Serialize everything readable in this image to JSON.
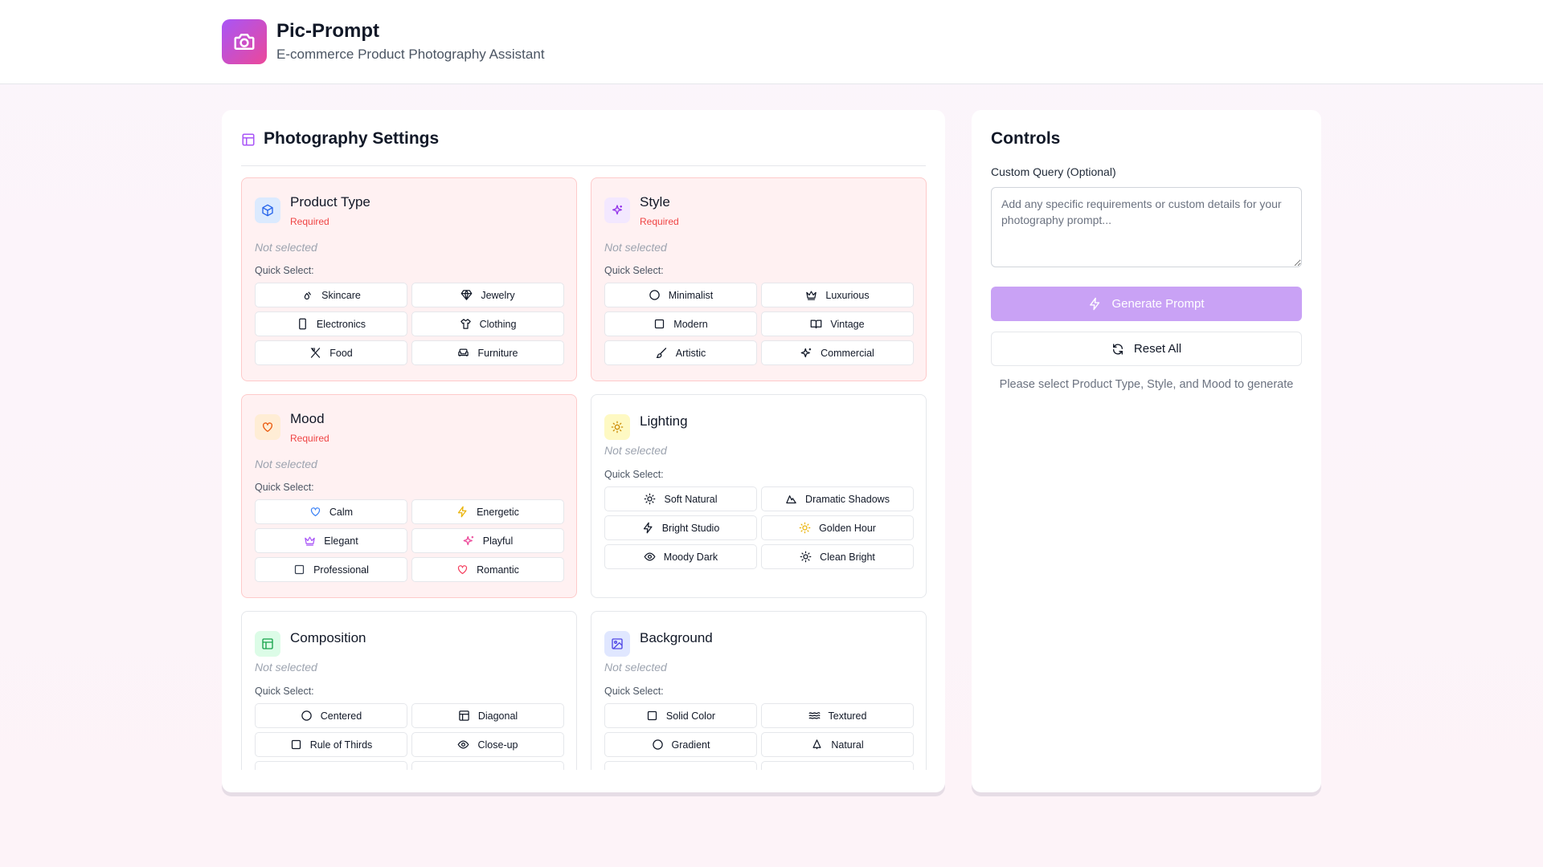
{
  "app": {
    "title": "Pic-Prompt",
    "subtitle": "E-commerce Product Photography Assistant",
    "logo_icon": "camera-icon",
    "brand_gradient": [
      "#a855f7",
      "#ec4899"
    ]
  },
  "settings": {
    "title": "Photography Settings",
    "icon": "layout-icon",
    "quick_select_label": "Quick Select:",
    "sections": [
      {
        "title": "Product Type",
        "required": "Required",
        "status": "Not selected",
        "icon": "box-icon",
        "options": [
          {
            "label": "Skincare",
            "icon": "droplets-icon"
          },
          {
            "label": "Jewelry",
            "icon": "gem-icon"
          },
          {
            "label": "Electronics",
            "icon": "smartphone-icon"
          },
          {
            "label": "Clothing",
            "icon": "shirt-icon"
          },
          {
            "label": "Food",
            "icon": "utensils-icon"
          },
          {
            "label": "Furniture",
            "icon": "sofa-icon"
          }
        ]
      },
      {
        "title": "Style",
        "required": "Required",
        "status": "Not selected",
        "icon": "sparkles-icon",
        "options": [
          {
            "label": "Minimalist",
            "icon": "circle-icon"
          },
          {
            "label": "Luxurious",
            "icon": "crown-icon"
          },
          {
            "label": "Modern",
            "icon": "square-icon"
          },
          {
            "label": "Vintage",
            "icon": "book-open-icon"
          },
          {
            "label": "Artistic",
            "icon": "brush-icon"
          },
          {
            "label": "Commercial",
            "icon": "sparkles-icon"
          }
        ]
      },
      {
        "title": "Mood",
        "required": "Required",
        "status": "Not selected",
        "icon": "heart-icon",
        "options": [
          {
            "label": "Calm",
            "icon": "heart-icon"
          },
          {
            "label": "Energetic",
            "icon": "zap-icon"
          },
          {
            "label": "Elegant",
            "icon": "crown-icon"
          },
          {
            "label": "Playful",
            "icon": "sparkles-icon"
          },
          {
            "label": "Professional",
            "icon": "square-icon"
          },
          {
            "label": "Romantic",
            "icon": "heart-icon"
          }
        ]
      },
      {
        "title": "Lighting",
        "status": "Not selected",
        "icon": "sun-icon",
        "options": [
          {
            "label": "Soft Natural",
            "icon": "sun-icon"
          },
          {
            "label": "Dramatic Shadows",
            "icon": "mountain-icon"
          },
          {
            "label": "Bright Studio",
            "icon": "zap-icon"
          },
          {
            "label": "Golden Hour",
            "icon": "sun-icon"
          },
          {
            "label": "Moody Dark",
            "icon": "eye-icon"
          },
          {
            "label": "Clean Bright",
            "icon": "sun-icon"
          }
        ]
      },
      {
        "title": "Composition",
        "status": "Not selected",
        "icon": "layout-icon",
        "options": [
          {
            "label": "Centered",
            "icon": "circle-icon"
          },
          {
            "label": "Diagonal",
            "icon": "layout-icon"
          },
          {
            "label": "Rule of Thirds",
            "icon": "square-icon"
          },
          {
            "label": "Close-up",
            "icon": "eye-icon"
          }
        ]
      },
      {
        "title": "Background",
        "status": "Not selected",
        "icon": "image-icon",
        "options": [
          {
            "label": "Solid Color",
            "icon": "square-icon"
          },
          {
            "label": "Textured",
            "icon": "waves-icon"
          },
          {
            "label": "Gradient",
            "icon": "circle-icon"
          },
          {
            "label": "Natural",
            "icon": "tree-icon"
          }
        ]
      }
    ]
  },
  "controls": {
    "title": "Controls",
    "query_label": "Custom Query (Optional)",
    "query_placeholder": "Add any specific requirements or custom details for your photography prompt...",
    "query_value": "",
    "generate_label": "Generate Prompt",
    "reset_label": "Reset All",
    "hint": "Please select Product Type, Style, and Mood to generate"
  }
}
